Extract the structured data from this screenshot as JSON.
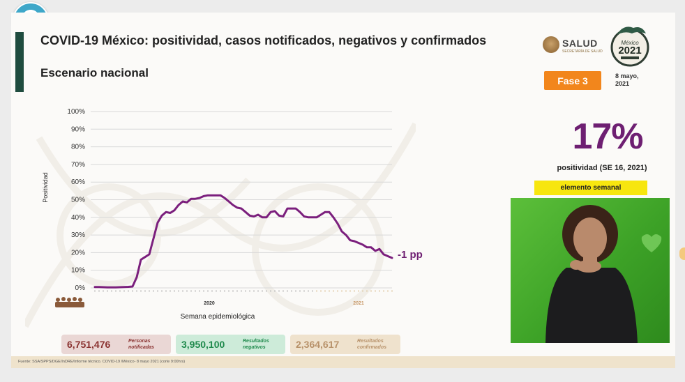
{
  "slide": {
    "title": "COVID-19 México: positividad, casos notificados, negativos y confirmados",
    "subtitle": "Escenario nacional",
    "brand": "SALUD",
    "brand_small": "SECRETARÍA DE SALUD",
    "phase": "Fase 3",
    "date_line1": "8 mayo,",
    "date_line2": "2021",
    "positivity_value": "17%",
    "positivity_label": "positividad (SE 16, 2021)",
    "weekly_element": "elemento semanal",
    "footer": "Fuente: SSA/SPPS/DGE/InDRE/Informe técnico. COVID-19 /México- 8 mayo 2021 (corte 9:00hrs)"
  },
  "stats": {
    "personas_value": "6,751,476",
    "personas_label": "Personas notificadas",
    "negativos_value": "3,950,100",
    "negativos_label": "Resultados negativos",
    "confirmados_value": "2,364,617",
    "confirmados_label": "Resultados confirmados"
  },
  "colors": {
    "line": "#7b1f7d",
    "phase": "#f2861c",
    "highlight": "#f7e60f",
    "accent_bar": "#1f4c3f"
  },
  "icons": {
    "periscope": "periscope-logo-icon",
    "salud": "salud-seal-icon",
    "mexico2021": "mexico-2021-logo-icon"
  },
  "chart_data": {
    "type": "line",
    "title": "",
    "xlabel": "Semana epidemiológica",
    "ylabel": "Positividad",
    "ylim": [
      0,
      100
    ],
    "yticks": [
      "0%",
      "10%",
      "20%",
      "30%",
      "40%",
      "50%",
      "60%",
      "70%",
      "80%",
      "90%",
      "100%"
    ],
    "year_labels": [
      "2020",
      "2021"
    ],
    "end_annotation": "-1 pp",
    "grid": true,
    "series": [
      {
        "values": [
          0.5,
          0.5,
          0.4,
          0.3,
          0.3,
          0.3,
          0.4,
          0.5,
          0.6,
          0.8,
          6,
          16,
          17.5,
          19,
          28,
          37,
          41,
          43,
          42.5,
          44,
          47,
          49,
          48.5,
          50.5,
          50.5,
          51,
          52,
          52.5,
          52.5,
          52.5,
          52.5,
          51,
          49,
          47,
          45.5,
          45,
          43,
          41,
          40.5,
          41.5,
          40,
          40,
          43,
          43.5,
          41,
          40.5,
          45,
          45,
          45,
          43,
          40.5,
          40,
          40,
          40,
          41.5,
          43,
          43,
          40,
          36.5,
          32,
          30,
          27,
          26.5,
          25.5,
          24.5,
          23,
          23,
          21,
          22,
          19,
          18,
          17
        ]
      }
    ]
  }
}
